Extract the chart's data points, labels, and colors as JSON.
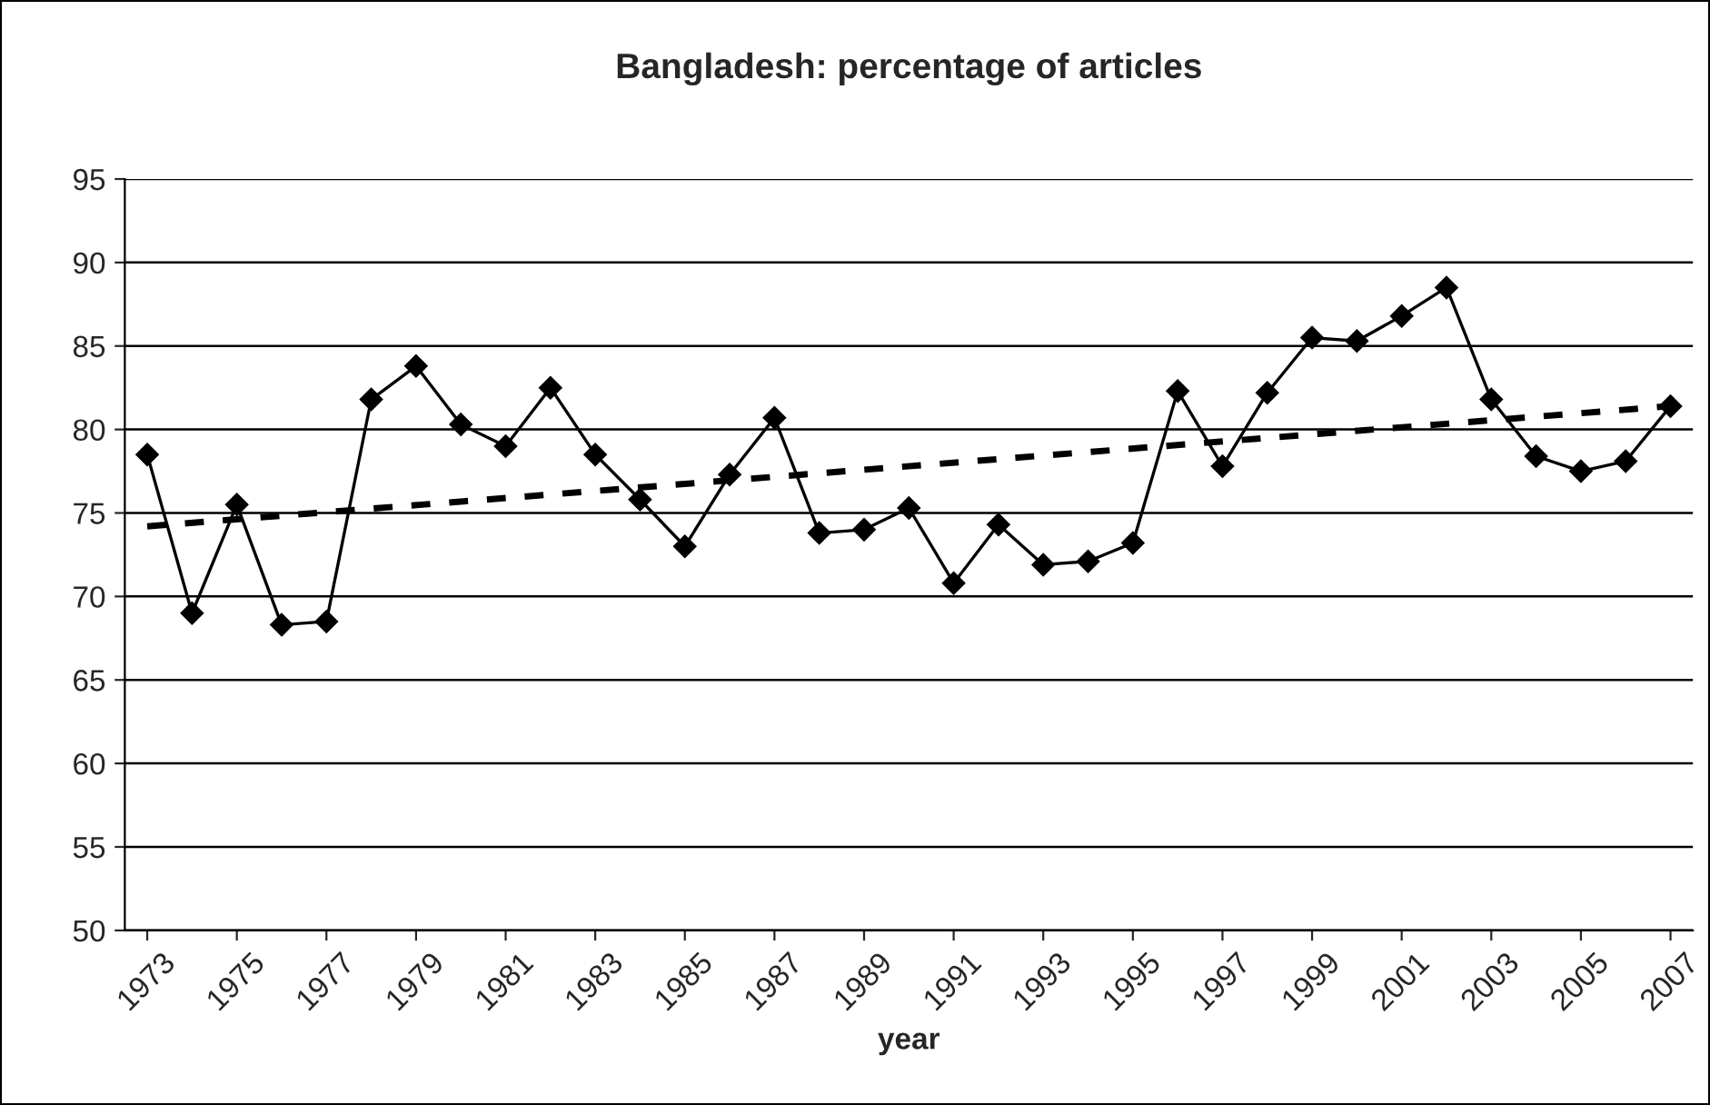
{
  "chart_data": {
    "type": "line",
    "title": "Bangladesh: percentage of articles",
    "xlabel": "year",
    "x": [
      1973,
      1974,
      1975,
      1976,
      1977,
      1978,
      1979,
      1980,
      1981,
      1982,
      1983,
      1984,
      1985,
      1986,
      1987,
      1988,
      1989,
      1990,
      1991,
      1992,
      1993,
      1994,
      1995,
      1996,
      1997,
      1998,
      1999,
      2000,
      2001,
      2002,
      2003,
      2004,
      2005,
      2006,
      2007
    ],
    "series": [
      {
        "color": "#000000",
        "marker": "diamond",
        "line_style": "solid",
        "values": [
          78.5,
          69,
          75.5,
          68.3,
          68.5,
          81.8,
          83.8,
          80.3,
          79,
          82.5,
          78.5,
          75.8,
          73,
          77.3,
          80.7,
          73.8,
          74,
          75.3,
          70.8,
          74.3,
          71.9,
          72.1,
          73.2,
          82.3,
          77.8,
          82.2,
          85.5,
          85.3,
          86.8,
          88.5,
          81.8,
          78.4,
          77.5,
          78.1,
          81.4
        ]
      },
      {
        "type": "line",
        "color": "#000000",
        "marker": "none",
        "line_style": "dashed",
        "x": [
          1973,
          2007
        ],
        "values": [
          74.2,
          81.4
        ]
      }
    ],
    "xlim": [
      1972.5,
      2007.5
    ],
    "xticks": [
      1973,
      1975,
      1977,
      1979,
      1981,
      1983,
      1985,
      1987,
      1989,
      1991,
      1993,
      1995,
      1997,
      1999,
      2001,
      2003,
      2005,
      2007
    ],
    "ylim": [
      50,
      95
    ],
    "yticks": [
      50,
      55,
      60,
      65,
      70,
      75,
      80,
      85,
      90,
      95
    ],
    "grid": "y",
    "legend": false
  }
}
